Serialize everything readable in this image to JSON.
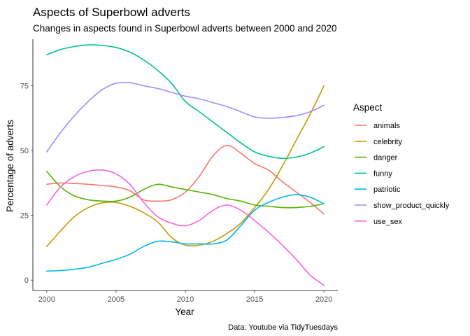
{
  "chart_data": {
    "type": "line",
    "title": "Aspects of Superbowl adverts",
    "subtitle": "Changes in aspects found in Superbowl adverts between 2000 and 2020",
    "xlabel": "Year",
    "ylabel": "Percentage of adverts",
    "caption": "Data: Youtube via TidyTuesdays",
    "xlim": [
      1999,
      2021
    ],
    "ylim": [
      -4,
      93
    ],
    "x_ticks": [
      2000,
      2005,
      2010,
      2015,
      2020
    ],
    "y_ticks": [
      0,
      25,
      50,
      75
    ],
    "grid": false,
    "legend": {
      "title": "Aspect",
      "position": "right"
    },
    "x": [
      2000,
      2001,
      2002,
      2003,
      2004,
      2005,
      2006,
      2007,
      2008,
      2009,
      2010,
      2011,
      2012,
      2013,
      2014,
      2015,
      2016,
      2017,
      2018,
      2019,
      2020
    ],
    "series": [
      {
        "name": "animals",
        "color": "#F8766D",
        "values": [
          37,
          37.5,
          37.3,
          37,
          36.5,
          36,
          34.5,
          31,
          30.5,
          31,
          34,
          40,
          48,
          52,
          49,
          45,
          42.5,
          38,
          34,
          30,
          25.5
        ]
      },
      {
        "name": "celebrity",
        "color": "#C49A00",
        "values": [
          13,
          19,
          24.5,
          28,
          29.8,
          30,
          28.5,
          26,
          22.5,
          16.5,
          13.5,
          13.5,
          15,
          18,
          22,
          28,
          35,
          44,
          54,
          64,
          75
        ]
      },
      {
        "name": "danger",
        "color": "#53B400",
        "values": [
          42,
          36,
          32.5,
          31,
          30.5,
          30.5,
          32,
          35,
          37,
          36,
          35,
          34,
          33,
          31.5,
          30.5,
          29,
          28.5,
          28,
          28,
          28.5,
          29.5
        ]
      },
      {
        "name": "funny",
        "color": "#00C094",
        "values": [
          87,
          89,
          90.2,
          90.8,
          90.6,
          89.8,
          88,
          85,
          81,
          76,
          69,
          65,
          61,
          57,
          53,
          49.5,
          47.8,
          47,
          47.5,
          49,
          51.5
        ]
      },
      {
        "name": "patriotic",
        "color": "#00B6EB",
        "values": [
          3.5,
          3.7,
          4.2,
          5,
          6.5,
          8,
          10,
          13,
          15,
          14.8,
          14,
          14,
          14,
          15.5,
          21,
          27,
          30,
          32,
          33,
          32,
          29.5
        ]
      },
      {
        "name": "show_product_quickly",
        "color": "#A58AFF",
        "values": [
          49.5,
          57,
          63.5,
          69,
          73.5,
          76,
          76.2,
          75,
          74,
          72.5,
          71,
          70,
          68.5,
          67,
          65,
          63,
          62.5,
          62.8,
          63.5,
          65,
          67.5
        ]
      },
      {
        "name": "use_sex",
        "color": "#FB61D7",
        "values": [
          29,
          36,
          40,
          42,
          42.5,
          41,
          37,
          30,
          24.5,
          22,
          21,
          23,
          27,
          29,
          27,
          23,
          18.5,
          13.5,
          8,
          2,
          -2
        ]
      }
    ]
  }
}
